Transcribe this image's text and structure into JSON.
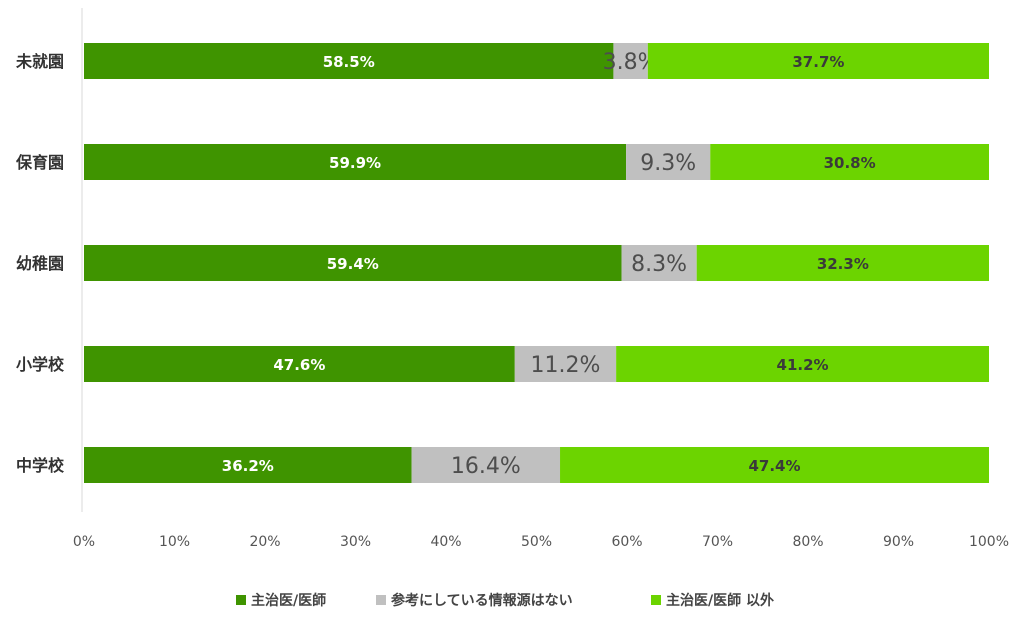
{
  "chart_data": {
    "type": "bar",
    "orientation": "horizontal",
    "stacked": true,
    "categories": [
      "未就園",
      "保育園",
      "幼稚園",
      "小学校",
      "中学校"
    ],
    "series": [
      {
        "name": "主治医/医師",
        "color": "#3f9400",
        "values": [
          58.5,
          59.9,
          59.4,
          47.6,
          36.2
        ]
      },
      {
        "name": "参考にしている情報源はない",
        "color": "#c0c0c0",
        "values": [
          3.8,
          9.3,
          8.3,
          11.2,
          16.4
        ]
      },
      {
        "name": "主治医/医師 以外",
        "color": "#6cd400",
        "values": [
          37.7,
          30.8,
          32.3,
          41.2,
          47.4
        ]
      }
    ],
    "xlim": [
      0,
      100
    ],
    "xticks": [
      "0%",
      "10%",
      "20%",
      "30%",
      "40%",
      "50%",
      "60%",
      "70%",
      "80%",
      "90%",
      "100%"
    ],
    "value_suffix": "%",
    "grid": false,
    "legend_position": "bottom"
  }
}
